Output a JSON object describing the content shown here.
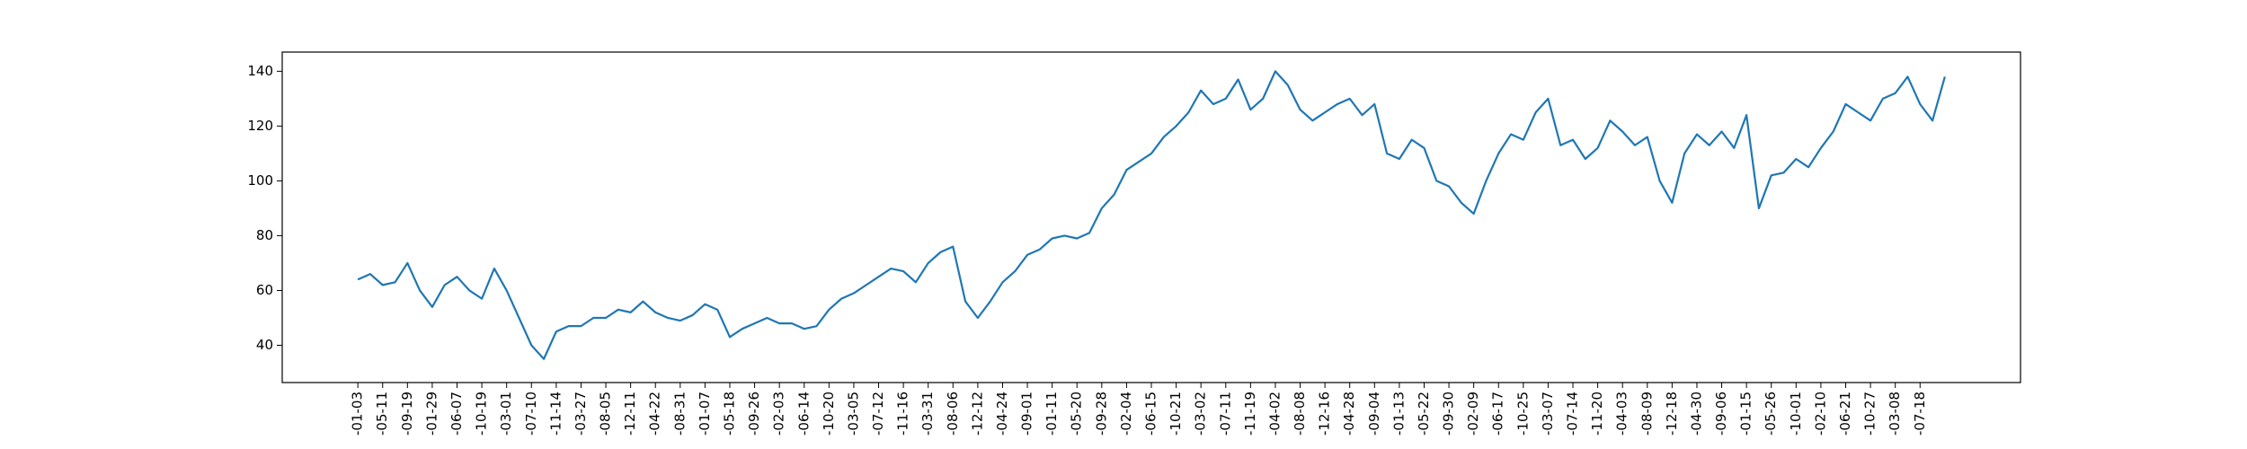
{
  "chart_data": {
    "type": "line",
    "series": [
      {
        "color": "#1f77b4",
        "values": [
          64,
          66,
          62,
          63,
          70,
          60,
          54,
          62,
          65,
          60,
          57,
          68,
          60,
          50,
          40,
          35,
          45,
          47,
          47,
          50,
          50,
          53,
          52,
          56,
          52,
          50,
          49,
          51,
          55,
          53,
          43,
          46,
          48,
          50,
          48,
          48,
          46,
          47,
          53,
          57,
          59,
          62,
          65,
          68,
          67,
          63,
          70,
          74,
          76,
          56,
          50,
          56,
          63,
          67,
          73,
          75,
          79,
          80,
          79,
          81,
          90,
          95,
          104,
          107,
          110,
          116,
          120,
          125,
          133,
          128,
          130,
          137,
          126,
          130,
          140,
          135,
          126,
          122,
          125,
          128,
          130,
          124,
          128,
          110,
          108,
          115,
          112,
          100,
          98,
          92,
          88,
          100,
          110,
          117,
          115,
          125,
          130,
          113,
          115,
          108,
          112,
          122,
          118,
          113,
          116,
          100,
          92,
          110,
          117,
          113,
          118,
          112,
          124,
          90,
          102,
          103,
          108,
          105,
          112,
          118,
          128,
          125,
          122,
          130,
          132,
          138,
          128,
          122,
          138
        ]
      }
    ],
    "xlim": [
      -6.1,
      134.1
    ],
    "xticks": [
      {
        "value": 0,
        "label": "-01-03"
      },
      {
        "value": 2,
        "label": "-05-11"
      },
      {
        "value": 4,
        "label": "-09-19"
      },
      {
        "value": 6,
        "label": "-01-29"
      },
      {
        "value": 8,
        "label": "-06-07"
      },
      {
        "value": 10,
        "label": "-10-19"
      },
      {
        "value": 12,
        "label": "-03-01"
      },
      {
        "value": 14,
        "label": "-07-10"
      },
      {
        "value": 16,
        "label": "-11-14"
      },
      {
        "value": 18,
        "label": "-03-27"
      },
      {
        "value": 20,
        "label": "-08-05"
      },
      {
        "value": 22,
        "label": "-12-11"
      },
      {
        "value": 24,
        "label": "-04-22"
      },
      {
        "value": 26,
        "label": "-08-31"
      },
      {
        "value": 28,
        "label": "-01-07"
      },
      {
        "value": 30,
        "label": "-05-18"
      },
      {
        "value": 32,
        "label": "-09-26"
      },
      {
        "value": 34,
        "label": "-02-03"
      },
      {
        "value": 36,
        "label": "-06-14"
      },
      {
        "value": 38,
        "label": "-10-20"
      },
      {
        "value": 40,
        "label": "-03-05"
      },
      {
        "value": 42,
        "label": "-07-12"
      },
      {
        "value": 44,
        "label": "-11-16"
      },
      {
        "value": 46,
        "label": "-03-31"
      },
      {
        "value": 48,
        "label": "-08-06"
      },
      {
        "value": 50,
        "label": "-12-12"
      },
      {
        "value": 52,
        "label": "-04-24"
      },
      {
        "value": 54,
        "label": "-09-01"
      },
      {
        "value": 56,
        "label": "-01-11"
      },
      {
        "value": 58,
        "label": "-05-20"
      },
      {
        "value": 60,
        "label": "-09-28"
      },
      {
        "value": 62,
        "label": "-02-04"
      },
      {
        "value": 64,
        "label": "-06-15"
      },
      {
        "value": 66,
        "label": "-10-21"
      },
      {
        "value": 68,
        "label": "-03-02"
      },
      {
        "value": 70,
        "label": "-07-11"
      },
      {
        "value": 72,
        "label": "-11-19"
      },
      {
        "value": 74,
        "label": "-04-02"
      },
      {
        "value": 76,
        "label": "-08-08"
      },
      {
        "value": 78,
        "label": "-12-16"
      },
      {
        "value": 80,
        "label": "-04-28"
      },
      {
        "value": 82,
        "label": "-09-04"
      },
      {
        "value": 84,
        "label": "-01-13"
      },
      {
        "value": 86,
        "label": "-05-22"
      },
      {
        "value": 88,
        "label": "-09-30"
      },
      {
        "value": 90,
        "label": "-02-09"
      },
      {
        "value": 92,
        "label": "-06-17"
      },
      {
        "value": 94,
        "label": "-10-25"
      },
      {
        "value": 96,
        "label": "-03-07"
      },
      {
        "value": 98,
        "label": "-07-14"
      },
      {
        "value": 100,
        "label": "-11-20"
      },
      {
        "value": 102,
        "label": "-04-03"
      },
      {
        "value": 104,
        "label": "-08-09"
      },
      {
        "value": 106,
        "label": "-12-18"
      },
      {
        "value": 108,
        "label": "-04-30"
      },
      {
        "value": 110,
        "label": "-09-06"
      },
      {
        "value": 112,
        "label": "-01-15"
      },
      {
        "value": 114,
        "label": "-05-26"
      },
      {
        "value": 116,
        "label": "-10-01"
      },
      {
        "value": 118,
        "label": "-02-10"
      },
      {
        "value": 120,
        "label": "-06-21"
      },
      {
        "value": 122,
        "label": "-10-27"
      },
      {
        "value": 124,
        "label": "-03-08"
      },
      {
        "value": 126,
        "label": "-07-18"
      }
    ],
    "ylim": [
      26.4,
      147
    ],
    "yticks": [
      40,
      60,
      80,
      100,
      120,
      140
    ],
    "grid": false
  }
}
